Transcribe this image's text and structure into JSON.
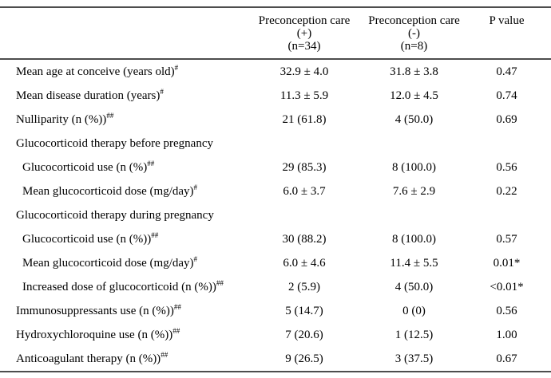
{
  "chart_data": {
    "type": "table",
    "header": {
      "group_plus": {
        "line1": "Preconception care",
        "line2": "(+)",
        "line3": "(n=34)"
      },
      "group_minus": {
        "line1": "Preconception care",
        "line2": "(-)",
        "line3": "(n=8)"
      },
      "p_value": "P value"
    },
    "rows": [
      {
        "label": "Mean age at conceive (years old)",
        "sup": "#",
        "plus": "32.9 ± 4.0",
        "minus": "31.8 ± 3.8",
        "p": "0.47"
      },
      {
        "label": "Mean disease duration (years)",
        "sup": "#",
        "plus": "11.3 ± 5.9",
        "minus": "12.0 ± 4.5",
        "p": "0.74"
      },
      {
        "label": "Nulliparity (n (%))",
        "sup": "##",
        "plus": "21 (61.8)",
        "minus": "4 (50.0)",
        "p": "0.69"
      },
      {
        "label": "Glucocorticoid therapy before pregnancy",
        "sup": "",
        "plus": "",
        "minus": "",
        "p": ""
      },
      {
        "label": "Glucocorticoid use (n (%)",
        "sup": "##",
        "plus": "29 (85.3)",
        "minus": "8 (100.0)",
        "p": "0.56"
      },
      {
        "label": "Mean glucocorticoid dose (mg/day)",
        "sup": "#",
        "plus": "6.0 ± 3.7",
        "minus": "7.6 ± 2.9",
        "p": "0.22"
      },
      {
        "label": "Glucocorticoid therapy during pregnancy",
        "sup": "",
        "plus": "",
        "minus": "",
        "p": ""
      },
      {
        "label": "Glucocorticoid use (n (%))",
        "sup": "##",
        "plus": "30 (88.2)",
        "minus": "8 (100.0)",
        "p": "0.57"
      },
      {
        "label": "Mean glucocorticoid dose (mg/day)",
        "sup": "#",
        "plus": "6.0 ± 4.6",
        "minus": "11.4 ± 5.5",
        "p": "0.01*"
      },
      {
        "label": "Increased dose of glucocorticoid (n (%))",
        "sup": "##",
        "plus": "2 (5.9)",
        "minus": "4 (50.0)",
        "p": "<0.01*"
      },
      {
        "label": "Immunosuppressants use (n (%))",
        "sup": "##",
        "plus": "5 (14.7)",
        "minus": "0 (0)",
        "p": "0.56"
      },
      {
        "label": "Hydroxychloroquine use (n (%))",
        "sup": "##",
        "plus": "7 (20.6)",
        "minus": "1 (12.5)",
        "p": "1.00"
      },
      {
        "label": "Anticoagulant therapy (n (%))",
        "sup": "##",
        "plus": "9 (26.5)",
        "minus": "3 (37.5)",
        "p": "0.67"
      }
    ]
  }
}
